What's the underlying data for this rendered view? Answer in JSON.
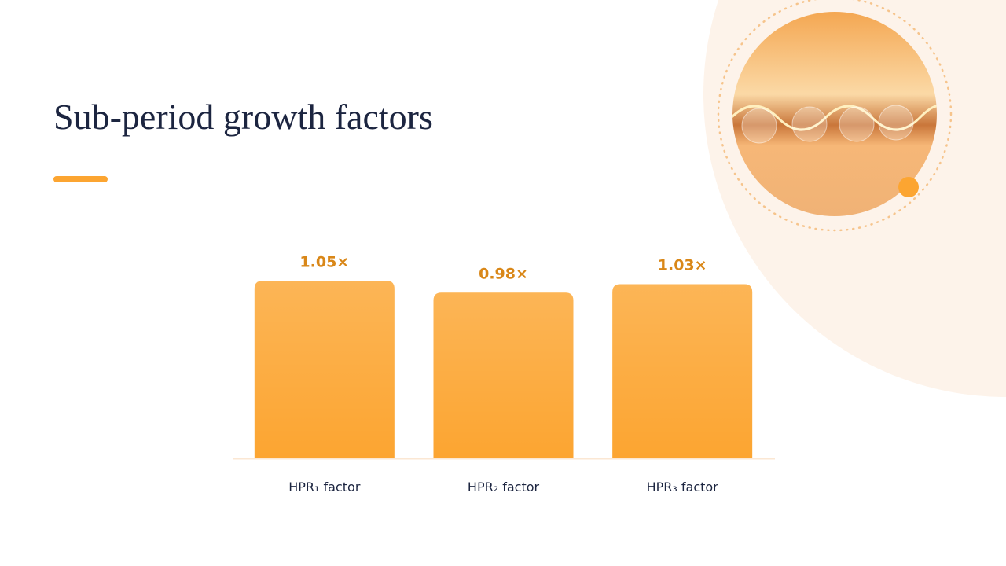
{
  "chart_data": {
    "type": "bar",
    "title": "Sub-period growth factors",
    "categories": [
      "HPR₁ factor",
      "HPR₂ factor",
      "HPR₃ factor"
    ],
    "values": [
      1.05,
      0.98,
      1.03
    ],
    "value_labels": [
      "1.05×",
      "0.98×",
      "1.03×"
    ],
    "color": "#fca531",
    "ylim": [
      0,
      1.2
    ]
  }
}
